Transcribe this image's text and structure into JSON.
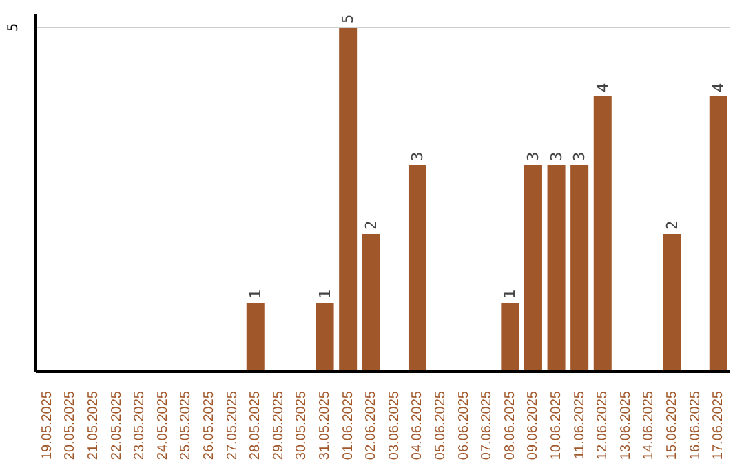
{
  "chart_data": {
    "type": "bar",
    "categories": [
      "19.05.2025",
      "20.05.2025",
      "21.05.2025",
      "22.05.2025",
      "23.05.2025",
      "24.05.2025",
      "25.05.2025",
      "26.05.2025",
      "27.05.2025",
      "28.05.2025",
      "29.05.2025",
      "30.05.2025",
      "31.05.2025",
      "01.06.2025",
      "02.06.2025",
      "03.06.2025",
      "04.06.2025",
      "05.06.2025",
      "06.06.2025",
      "07.06.2025",
      "08.06.2025",
      "09.06.2025",
      "10.06.2025",
      "11.06.2025",
      "12.06.2025",
      "13.06.2025",
      "14.06.2025",
      "15.06.2025",
      "16.06.2025",
      "17.06.2025"
    ],
    "values": [
      null,
      null,
      null,
      null,
      null,
      null,
      null,
      null,
      null,
      1,
      null,
      null,
      1,
      5,
      2,
      null,
      3,
      null,
      null,
      null,
      1,
      3,
      3,
      3,
      4,
      null,
      null,
      2,
      null,
      4
    ],
    "color": "#a0572a",
    "ylim": [
      0,
      5.2
    ],
    "yticks": [
      5
    ],
    "grid": "y",
    "data_labels": true
  }
}
